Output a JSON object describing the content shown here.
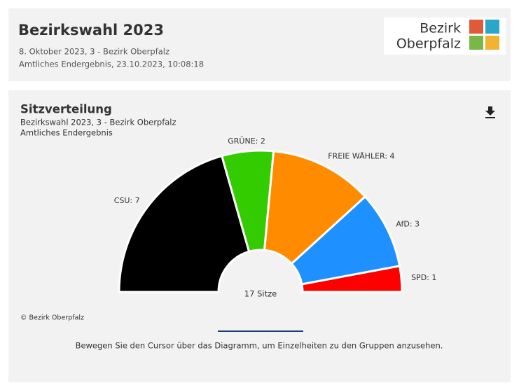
{
  "header": {
    "title": "Bezirkswahl 2023",
    "line1": "8. Oktober 2023, 3 - Bezirk Oberpfalz",
    "line2": "Amtliches Endergebnis, 23.10.2023, 10:08:18"
  },
  "logo": {
    "line1": "Bezirk",
    "line2": "Oberpfalz"
  },
  "chart_data": {
    "type": "pie",
    "title": "Sitzverteilung",
    "subtitle": [
      "Bezirkswahl 2023, 3 - Bezirk Oberpfalz",
      "Amtliches Endergebnis"
    ],
    "values": [
      7,
      2,
      4,
      3,
      1
    ],
    "value_labels": [
      "CSU: 7",
      "GRÜNE: 2",
      "FREIE WÄHLER: 4",
      "AfD: 3",
      "SPD: 1"
    ],
    "colors": [
      "#000000",
      "#33cc00",
      "#ff8c00",
      "#1e90ff",
      "#ff0000"
    ],
    "center_label": "17 Sitze"
  },
  "credit": "© Bezirk Oberpfalz",
  "hint": "Bewegen Sie den Cursor über das Diagramm, um Einzelheiten zu den Gruppen anzusehen."
}
